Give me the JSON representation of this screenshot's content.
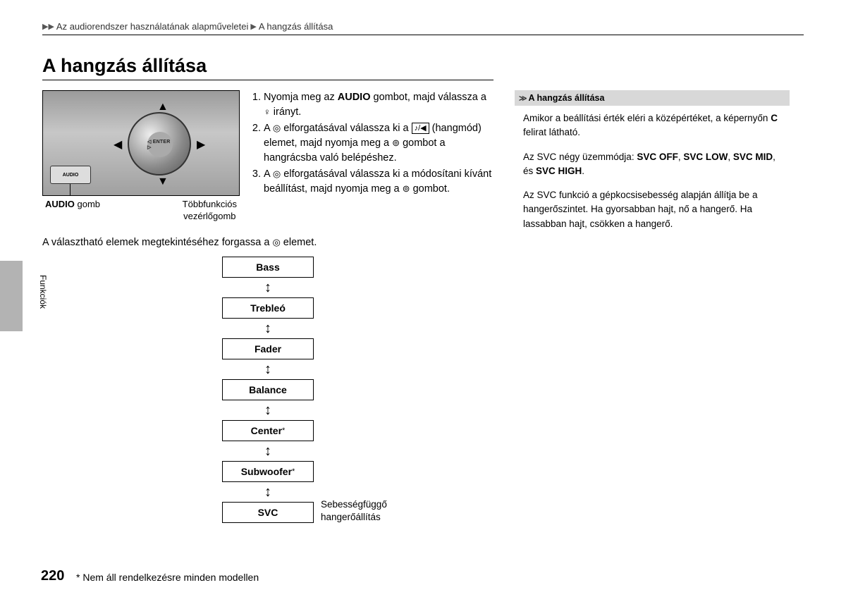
{
  "breadcrumb": {
    "part1": "Az audiorendszer használatának alapműveletei",
    "part2": "A hangzás állítása"
  },
  "title": "A hangzás állítása",
  "knob": {
    "enter": "◁ ENTER ▷",
    "audio_btn": "AUDIO",
    "label_left": "AUDIO",
    "label_left_suffix": " gomb",
    "label_right_l1": "Többfunkciós",
    "label_right_l2": "vezérlőgomb"
  },
  "steps": {
    "s1a": "Nyomja meg az ",
    "s1b": "AUDIO",
    "s1c": " gombot, majd válassza a ",
    "s1d": " irányt.",
    "s2a": "A ",
    "s2b": " elforgatásával válassza ki a ",
    "s2c": " (hangmód) elemet, majd nyomja meg a ",
    "s2d": " gombot a hangrácsba való belépéshez.",
    "s3a": "A ",
    "s3b": " elforgatásával válassza ki a módosítani kívánt beállítást, majd nyomja meg a ",
    "s3c": " gombot."
  },
  "icons": {
    "joystick": "♀",
    "dial": "◎",
    "note_speaker": "♪/◀",
    "press": "⊚"
  },
  "intro": "A választható elemek megtekintéséhez forgassa a ",
  "intro2": " elemet.",
  "flow": {
    "items": [
      "Bass",
      "Trebleó",
      "Fader",
      "Balance",
      "Center",
      "Subwoofer",
      "SVC"
    ],
    "star4": "*",
    "star5": "*",
    "arrow": "↕",
    "svc_note_l1": "Sebességfüggő",
    "svc_note_l2": "hangerőállítás"
  },
  "sidebar": {
    "header": "A hangzás állítása",
    "p1a": "Amikor a beállítási érték eléri a középértéket, a képernyőn ",
    "p1b": "C",
    "p1c": " felirat látható.",
    "p2a": "Az SVC négy üzemmódja: ",
    "p2b": "SVC OFF",
    "p2c": ", ",
    "p2d": "SVC LOW",
    "p2e": ", ",
    "p2f": "SVC MID",
    "p2g": ", és ",
    "p2h": "SVC HIGH",
    "p2i": ".",
    "p3": "Az SVC funkció a gépkocsisebesség alapján állítja be a hangerőszintet. Ha gyorsabban hajt, nő a hangerő. Ha lassabban hajt, csökken a hangerő."
  },
  "side_tab": "Funkciók",
  "page_number": "220",
  "footnote": "* Nem áll rendelkezésre minden modellen"
}
